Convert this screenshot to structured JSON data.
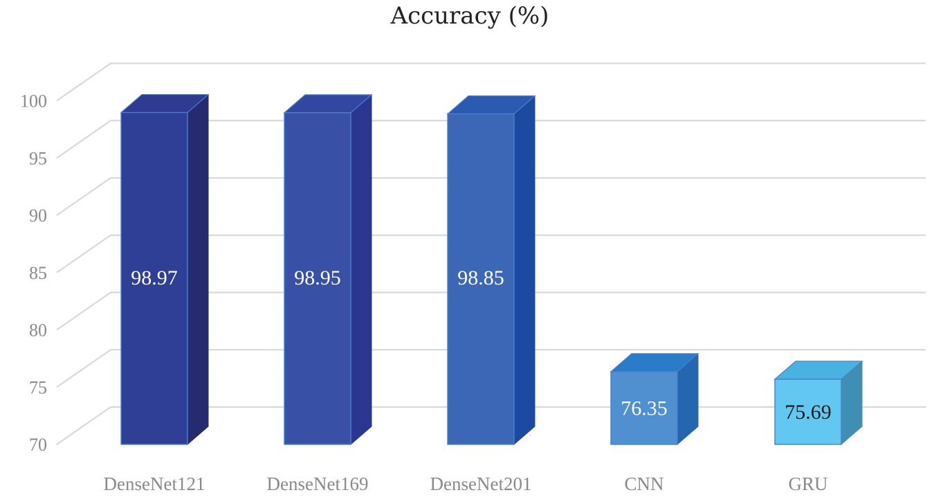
{
  "chart_data": {
    "type": "bar",
    "title": "Accuracy (%)",
    "categories": [
      "DenseNet121",
      "DenseNet169",
      "DenseNet201",
      "CNN",
      "GRU"
    ],
    "values": [
      98.97,
      98.95,
      98.85,
      76.35,
      75.69
    ],
    "data_labels": [
      "98.97",
      "98.95",
      "98.85",
      "76.35",
      "75.69"
    ],
    "ylim": [
      70,
      100
    ],
    "yticks": [
      70,
      75,
      80,
      85,
      90,
      95,
      100
    ],
    "grid": true,
    "legend": "none",
    "style": "3d-column",
    "colors": {
      "front": [
        "#2f3f96",
        "#3850a6",
        "#3c67b7",
        "#508fd0",
        "#62c8f2"
      ],
      "side": [
        "#262a6e",
        "#2a3690",
        "#1c4aa0",
        "#2466b0",
        "#3f8fb4"
      ],
      "top": [
        "#2f3b90",
        "#3248a0",
        "#2a5bb0",
        "#2a7cc8",
        "#4ab2e0"
      ],
      "label": [
        "#ffffff",
        "#ffffff",
        "#ffffff",
        "#ffffff",
        "#1a1a1a"
      ],
      "grid": "#d9d9d9",
      "axis_text": "#8a8a8a"
    }
  }
}
